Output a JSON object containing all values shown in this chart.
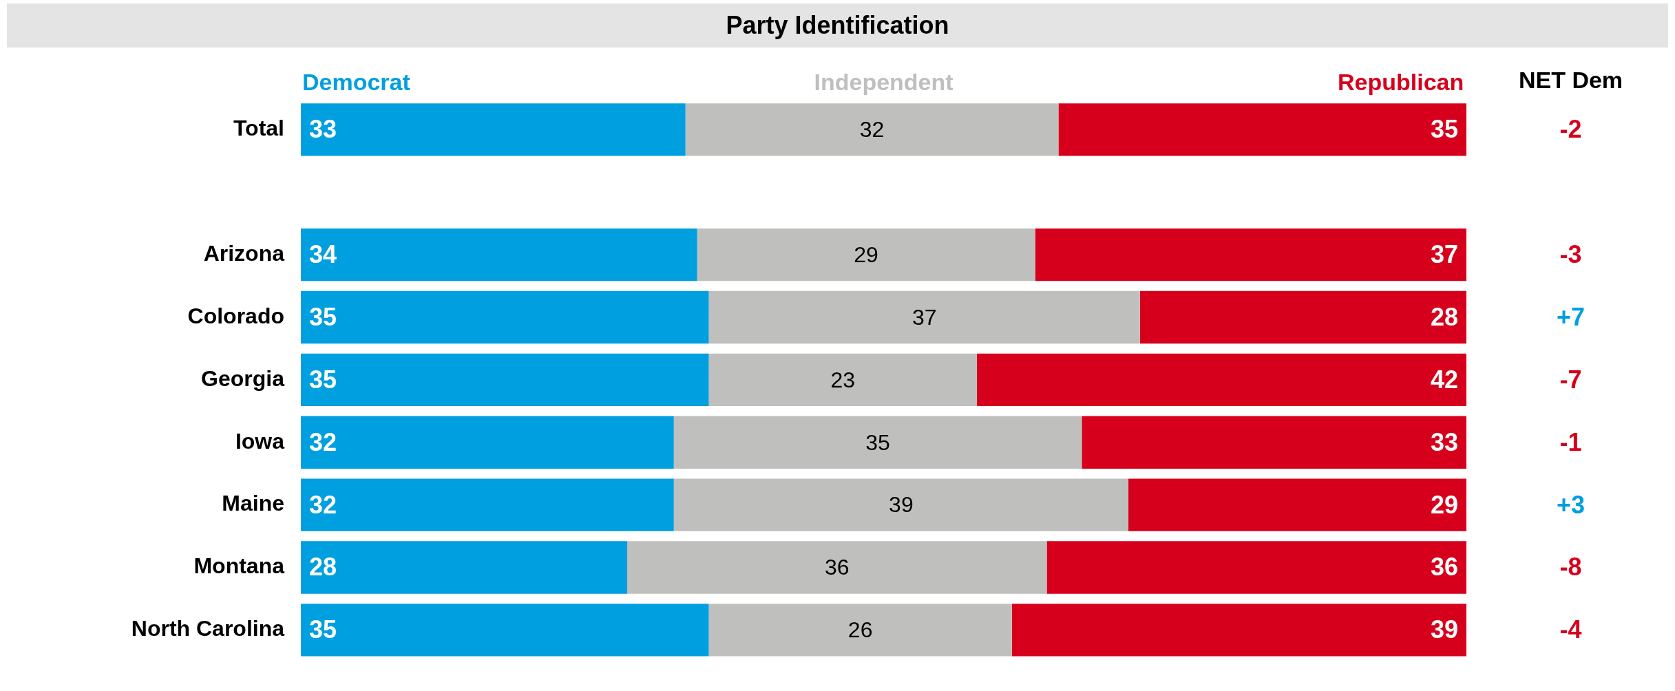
{
  "chart_data": {
    "type": "bar",
    "orientation": "horizontal",
    "stacked": true,
    "title": "Party Identification",
    "categories": [
      "Total",
      null,
      "Arizona",
      "Colorado",
      "Georgia",
      "Iowa",
      "Maine",
      "Montana",
      "North Carolina"
    ],
    "series": [
      {
        "name": "Democrat",
        "color": "#009fdf",
        "values": [
          33,
          null,
          34,
          35,
          35,
          32,
          32,
          28,
          35
        ]
      },
      {
        "name": "Independent",
        "color": "#bfbfbd",
        "values": [
          32,
          null,
          29,
          37,
          23,
          35,
          39,
          36,
          26
        ]
      },
      {
        "name": "Republican",
        "color": "#d6001c",
        "values": [
          35,
          null,
          37,
          28,
          42,
          33,
          29,
          36,
          39
        ]
      }
    ],
    "tick_labels": "y",
    "grid": false,
    "legend": "top",
    "data_labels": true,
    "annotations": [
      "NET Dem",
      "-2",
      "-3",
      "+7",
      "-7",
      "-1",
      "+3",
      "-8",
      "-4"
    ]
  }
}
